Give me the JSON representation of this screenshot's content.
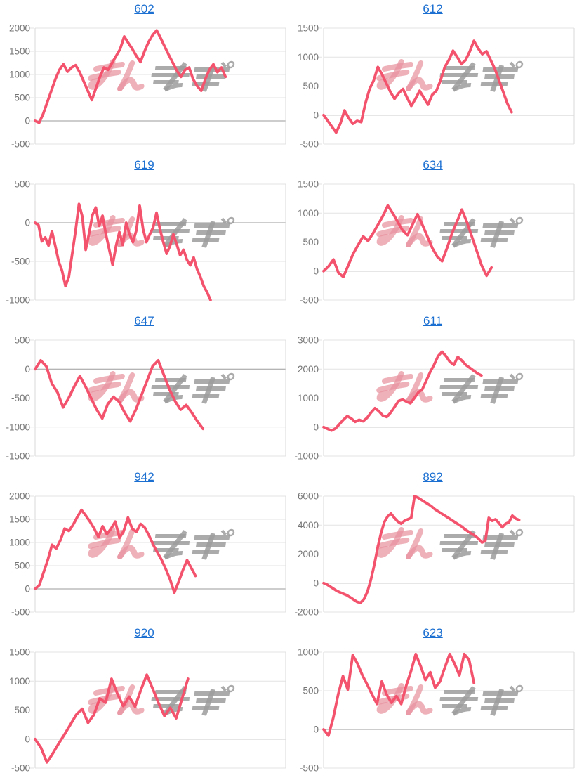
{
  "page": {
    "background": "#ffffff",
    "watermark_text": "みんレポ"
  },
  "colors": {
    "line": "#f4536e",
    "title_link": "#1b6fd1",
    "tick_text": "#757575",
    "gridline": "#e3e3e3",
    "zero_line": "#9b9b9b",
    "axis_line": "#dadada",
    "watermark_pink": "#e8919e",
    "watermark_gray": "#9c9c9c"
  },
  "chart_data": [
    {
      "type": "line",
      "title": "602",
      "ylim": [
        -500,
        2000
      ],
      "yticks": [
        2000,
        1500,
        1000,
        500,
        0,
        -500
      ],
      "grid": true,
      "end_frac": 0.76,
      "values": [
        0,
        -40,
        150,
        400,
        650,
        900,
        1100,
        1220,
        1060,
        1150,
        1200,
        1050,
        850,
        650,
        450,
        700,
        950,
        1150,
        1100,
        1250,
        1400,
        1550,
        1820,
        1680,
        1550,
        1400,
        1270,
        1500,
        1700,
        1850,
        1950,
        1780,
        1600,
        1420,
        1250,
        1080,
        950,
        1100,
        1150,
        900,
        750,
        650,
        900,
        1100,
        1220,
        1050,
        1150,
        950
      ]
    },
    {
      "type": "line",
      "title": "612",
      "ylim": [
        -500,
        1500
      ],
      "yticks": [
        1500,
        1000,
        500,
        0,
        -500
      ],
      "grid": true,
      "end_frac": 0.75,
      "values": [
        0,
        -100,
        -200,
        -300,
        -150,
        80,
        -50,
        -150,
        -100,
        -120,
        200,
        450,
        600,
        830,
        700,
        550,
        400,
        280,
        380,
        450,
        300,
        160,
        280,
        420,
        300,
        180,
        350,
        420,
        600,
        830,
        950,
        1110,
        1000,
        880,
        950,
        1100,
        1280,
        1150,
        1050,
        1100,
        950,
        800,
        600,
        400,
        200,
        50
      ]
    },
    {
      "type": "line",
      "title": "619",
      "ylim": [
        -1000,
        500
      ],
      "yticks": [
        500,
        0,
        -500,
        -1000
      ],
      "grid": true,
      "end_frac": 0.7,
      "values": [
        0,
        -30,
        -240,
        -190,
        -295,
        -110,
        -300,
        -500,
        -620,
        -820,
        -700,
        -400,
        -100,
        243,
        80,
        -350,
        -140,
        100,
        197,
        -40,
        91,
        -150,
        -350,
        -545,
        -300,
        -120,
        -287,
        0,
        -150,
        -250,
        -100,
        220,
        -80,
        -250,
        -150,
        -60,
        130,
        -80,
        -250,
        -400,
        -300,
        -150,
        -280,
        -420,
        -350,
        -480,
        -550,
        -450,
        -600,
        -700,
        -820,
        -900,
        -1000
      ]
    },
    {
      "type": "line",
      "title": "634",
      "ylim": [
        -500,
        1500
      ],
      "yticks": [
        1500,
        1000,
        500,
        0,
        -500
      ],
      "grid": true,
      "end_frac": 0.67,
      "values": [
        0,
        80,
        200,
        -30,
        -100,
        100,
        300,
        450,
        600,
        520,
        650,
        800,
        950,
        1130,
        1000,
        850,
        700,
        620,
        800,
        980,
        800,
        600,
        400,
        250,
        170,
        400,
        650,
        850,
        1060,
        850,
        600,
        350,
        100,
        -80,
        60
      ]
    },
    {
      "type": "line",
      "title": "647",
      "ylim": [
        -1500,
        500
      ],
      "yticks": [
        500,
        0,
        -500,
        -1000,
        -1500
      ],
      "grid": true,
      "end_frac": 0.67,
      "values": [
        0,
        150,
        50,
        -250,
        -400,
        -660,
        -500,
        -300,
        -120,
        -300,
        -500,
        -700,
        -850,
        -600,
        -480,
        -560,
        -750,
        -900,
        -700,
        -450,
        -200,
        50,
        150,
        -100,
        -350,
        -550,
        -700,
        -620,
        -750,
        -900,
        -1030
      ]
    },
    {
      "type": "line",
      "title": "611",
      "ylim": [
        -1000,
        3000
      ],
      "yticks": [
        3000,
        2000,
        1000,
        0,
        -1000
      ],
      "grid": true,
      "end_frac": 0.63,
      "values": [
        0,
        -60,
        -120,
        -50,
        100,
        250,
        380,
        300,
        180,
        250,
        200,
        320,
        500,
        650,
        550,
        400,
        350,
        500,
        700,
        900,
        950,
        880,
        820,
        1000,
        1200,
        1300,
        1600,
        1900,
        2150,
        2450,
        2600,
        2450,
        2250,
        2150,
        2420,
        2300,
        2150,
        2050,
        1950,
        1850,
        1780
      ]
    },
    {
      "type": "line",
      "title": "942",
      "ylim": [
        -500,
        2000
      ],
      "yticks": [
        2000,
        1500,
        1000,
        500,
        0,
        -500
      ],
      "grid": true,
      "end_frac": 0.64,
      "values": [
        0,
        80,
        350,
        620,
        950,
        870,
        1050,
        1300,
        1250,
        1380,
        1550,
        1700,
        1580,
        1450,
        1300,
        1120,
        1350,
        1180,
        1300,
        1450,
        1100,
        1250,
        1540,
        1300,
        1230,
        1400,
        1320,
        1150,
        950,
        780,
        620,
        420,
        200,
        -80,
        150,
        400,
        620,
        450,
        280
      ]
    },
    {
      "type": "line",
      "title": "892",
      "ylim": [
        -2000,
        6000
      ],
      "yticks": [
        6000,
        4000,
        2000,
        0,
        -2000
      ],
      "grid": true,
      "end_frac": 0.78,
      "values": [
        0,
        -100,
        -250,
        -400,
        -550,
        -650,
        -750,
        -850,
        -1000,
        -1150,
        -1300,
        -1350,
        -1100,
        -600,
        200,
        1200,
        2400,
        3400,
        4200,
        4600,
        4800,
        4500,
        4250,
        4100,
        4300,
        4400,
        4500,
        6000,
        5900,
        5750,
        5600,
        5450,
        5300,
        5100,
        4950,
        4800,
        4650,
        4500,
        4350,
        4200,
        4050,
        3900,
        3700,
        3550,
        3400,
        3250,
        3050,
        2800,
        2900,
        4500,
        4300,
        4400,
        4150,
        3850,
        4100,
        4200,
        4650,
        4450,
        4350
      ]
    },
    {
      "type": "line",
      "title": "920",
      "ylim": [
        -500,
        1500
      ],
      "yticks": [
        1500,
        1000,
        500,
        0,
        -500
      ],
      "grid": true,
      "end_frac": 0.61,
      "values": [
        0,
        -150,
        -400,
        -250,
        -80,
        80,
        250,
        420,
        520,
        280,
        420,
        700,
        630,
        1040,
        780,
        570,
        730,
        560,
        850,
        1110,
        870,
        620,
        400,
        540,
        360,
        700,
        1040
      ]
    },
    {
      "type": "line",
      "title": "623",
      "ylim": [
        -500,
        1000
      ],
      "yticks": [
        1000,
        500,
        0,
        -500
      ],
      "grid": true,
      "end_frac": 0.6,
      "values": [
        0,
        -80,
        150,
        450,
        690,
        515,
        960,
        850,
        700,
        580,
        450,
        330,
        620,
        450,
        345,
        430,
        330,
        560,
        750,
        975,
        820,
        640,
        740,
        540,
        620,
        800,
        975,
        850,
        700,
        975,
        900,
        600
      ]
    }
  ]
}
